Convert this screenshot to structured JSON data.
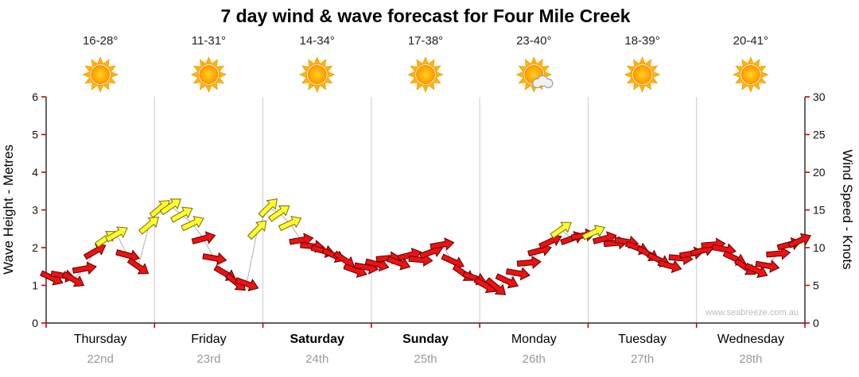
{
  "title": "7 day wind & wave forecast for Four Mile Creek",
  "watermark": "www.seabreeze.com.au",
  "days": [
    {
      "name": "Thursday",
      "date": "22nd",
      "temp": "16-28°",
      "icon": "sunny",
      "bold": false
    },
    {
      "name": "Friday",
      "date": "23rd",
      "temp": "11-31°",
      "icon": "sunny",
      "bold": false
    },
    {
      "name": "Saturday",
      "date": "24th",
      "temp": "14-34°",
      "icon": "sunny",
      "bold": true
    },
    {
      "name": "Sunday",
      "date": "25th",
      "temp": "17-38°",
      "icon": "sunny",
      "bold": true
    },
    {
      "name": "Monday",
      "date": "26th",
      "temp": "23-40°",
      "icon": "partly-cloudy",
      "bold": false
    },
    {
      "name": "Tuesday",
      "date": "27th",
      "temp": "18-39°",
      "icon": "sunny",
      "bold": false
    },
    {
      "name": "Wednesday",
      "date": "28th",
      "temp": "20-41°",
      "icon": "sunny",
      "bold": false
    }
  ],
  "colors": {
    "arrow_red": "#ee1111",
    "arrow_red_stroke": "#5a0000",
    "arrow_yellow": "#ffff2e",
    "arrow_yellow_stroke": "#7a6a00",
    "grid": "#cccccc",
    "tick": "#cc0000",
    "axis": "#000000",
    "trend_line": "#b0b0b0",
    "sun_core": "#ffb300",
    "sun_edge": "#ff9800",
    "cloud": "#f1f1f1"
  },
  "chart_data": {
    "type": "wind-arrow-timeseries",
    "title": "7 day wind & wave forecast for Four Mile Creek",
    "x_categories": [
      "Thursday 22nd",
      "Friday 23rd",
      "Saturday 24th",
      "Sunday 25th",
      "Monday 26th",
      "Tuesday 27th",
      "Wednesday 28th"
    ],
    "points_per_day": 10,
    "grid": "vertical lines at day boundaries",
    "legend": "none",
    "y_left": {
      "label": "Wave Height - Metres",
      "range": [
        0,
        6
      ],
      "ticks": [
        0,
        1,
        2,
        3,
        4,
        5,
        6
      ]
    },
    "y_right": {
      "label": "Wind Speed - Knots",
      "range": [
        0,
        30
      ],
      "ticks": [
        0,
        5,
        10,
        15,
        20,
        25,
        30
      ]
    },
    "series": [
      {
        "name": "Wind speed",
        "units": "knots",
        "values": [
          6.0,
          6.3,
          5.8,
          7.2,
          9.5,
          11.2,
          11.8,
          9.0,
          7.5,
          13.0,
          15.2,
          15.5,
          14.4,
          13.2,
          11.2,
          8.6,
          6.6,
          5.4,
          5.2,
          12.4,
          15.3,
          14.6,
          13.2,
          11.0,
          10.2,
          9.6,
          9.0,
          8.4,
          7.0,
          7.4,
          7.8,
          8.6,
          8.0,
          9.0,
          8.4,
          9.4,
          10.4,
          8.2,
          6.6,
          6.0,
          5.0,
          4.8,
          5.6,
          6.6,
          8.0,
          9.6,
          10.8,
          12.4,
          11.2,
          11.6,
          12.0,
          11.2,
          10.6,
          10.8,
          10.0,
          9.2,
          8.4,
          7.6,
          8.6,
          9.2,
          9.6,
          10.4,
          9.8,
          8.6,
          7.4,
          7.0,
          7.6,
          9.2,
          10.4,
          10.9
        ]
      }
    ],
    "arrow_directions_deg": [
      25,
      10,
      30,
      -10,
      -30,
      -35,
      -30,
      15,
      35,
      -40,
      -40,
      -35,
      -30,
      -25,
      -15,
      10,
      30,
      40,
      20,
      -45,
      -45,
      -35,
      -25,
      -10,
      5,
      15,
      25,
      35,
      20,
      10,
      15,
      -5,
      20,
      -15,
      5,
      -20,
      -10,
      25,
      35,
      20,
      30,
      40,
      25,
      10,
      -5,
      -15,
      -25,
      -35,
      -20,
      -10,
      -25,
      -15,
      -5,
      10,
      20,
      30,
      25,
      15,
      5,
      -10,
      -15,
      -5,
      10,
      25,
      35,
      25,
      10,
      -5,
      -15,
      -25
    ],
    "arrow_colors": [
      "red",
      "red",
      "red",
      "red",
      "red",
      "yellow",
      "yellow",
      "red",
      "red",
      "yellow",
      "yellow",
      "yellow",
      "yellow",
      "yellow",
      "red",
      "red",
      "red",
      "red",
      "red",
      "yellow",
      "yellow",
      "yellow",
      "yellow",
      "red",
      "red",
      "red",
      "red",
      "red",
      "red",
      "red",
      "red",
      "red",
      "red",
      "red",
      "red",
      "red",
      "red",
      "red",
      "red",
      "red",
      "red",
      "red",
      "red",
      "red",
      "red",
      "red",
      "red",
      "yellow",
      "red",
      "red",
      "yellow",
      "red",
      "red",
      "red",
      "red",
      "red",
      "red",
      "red",
      "red",
      "red",
      "red",
      "red",
      "red",
      "red",
      "red",
      "red",
      "red",
      "red",
      "red",
      "red"
    ]
  }
}
